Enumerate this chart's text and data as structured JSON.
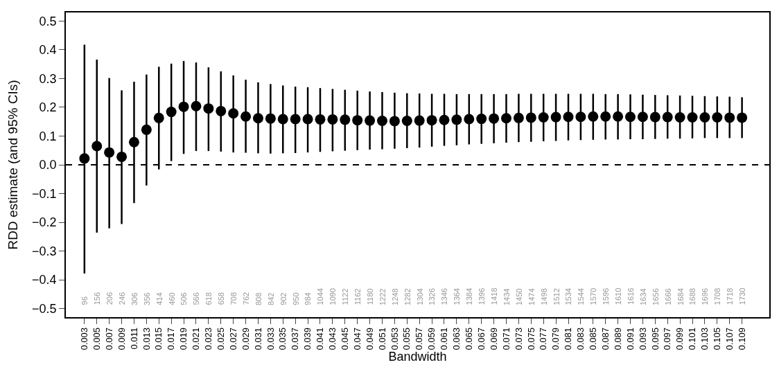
{
  "chart_data": {
    "type": "scatter",
    "xlabel": "Bandwidth",
    "ylabel": "RDD estimate (and 95% CIs)",
    "categories": [
      "0.003",
      "0.005",
      "0.007",
      "0.009",
      "0.011",
      "0.013",
      "0.015",
      "0.017",
      "0.019",
      "0.021",
      "0.023",
      "0.025",
      "0.027",
      "0.029",
      "0.031",
      "0.033",
      "0.035",
      "0.037",
      "0.039",
      "0.041",
      "0.043",
      "0.045",
      "0.047",
      "0.049",
      "0.051",
      "0.053",
      "0.055",
      "0.057",
      "0.059",
      "0.061",
      "0.063",
      "0.065",
      "0.067",
      "0.069",
      "0.071",
      "0.073",
      "0.075",
      "0.077",
      "0.079",
      "0.081",
      "0.083",
      "0.085",
      "0.087",
      "0.089",
      "0.091",
      "0.093",
      "0.095",
      "0.097",
      "0.099",
      "0.101",
      "0.103",
      "0.105",
      "0.107",
      "0.109"
    ],
    "series": [
      {
        "color": "#000000",
        "values": [
          0.022,
          0.065,
          0.043,
          0.028,
          0.079,
          0.122,
          0.163,
          0.184,
          0.202,
          0.204,
          0.196,
          0.187,
          0.179,
          0.168,
          0.162,
          0.161,
          0.159,
          0.159,
          0.159,
          0.158,
          0.158,
          0.157,
          0.155,
          0.154,
          0.153,
          0.152,
          0.153,
          0.154,
          0.155,
          0.156,
          0.157,
          0.159,
          0.16,
          0.161,
          0.162,
          0.163,
          0.164,
          0.165,
          0.166,
          0.167,
          0.167,
          0.168,
          0.168,
          0.168,
          0.167,
          0.167,
          0.166,
          0.166,
          0.165,
          0.165,
          0.165,
          0.165,
          0.164,
          0.164
        ],
        "errors": [
          [
            -0.378,
            0.418
          ],
          [
            -0.236,
            0.366
          ],
          [
            -0.221,
            0.302
          ],
          [
            -0.206,
            0.259
          ],
          [
            -0.133,
            0.289
          ],
          [
            -0.072,
            0.314
          ],
          [
            -0.016,
            0.341
          ],
          [
            0.013,
            0.352
          ],
          [
            0.038,
            0.361
          ],
          [
            0.048,
            0.356
          ],
          [
            0.048,
            0.339
          ],
          [
            0.046,
            0.325
          ],
          [
            0.043,
            0.311
          ],
          [
            0.042,
            0.296
          ],
          [
            0.04,
            0.287
          ],
          [
            0.039,
            0.281
          ],
          [
            0.04,
            0.276
          ],
          [
            0.041,
            0.272
          ],
          [
            0.043,
            0.27
          ],
          [
            0.045,
            0.267
          ],
          [
            0.047,
            0.264
          ],
          [
            0.049,
            0.261
          ],
          [
            0.051,
            0.258
          ],
          [
            0.053,
            0.255
          ],
          [
            0.054,
            0.253
          ],
          [
            0.056,
            0.251
          ],
          [
            0.058,
            0.249
          ],
          [
            0.06,
            0.248
          ],
          [
            0.063,
            0.247
          ],
          [
            0.066,
            0.247
          ],
          [
            0.068,
            0.246
          ],
          [
            0.071,
            0.246
          ],
          [
            0.073,
            0.246
          ],
          [
            0.075,
            0.246
          ],
          [
            0.077,
            0.246
          ],
          [
            0.079,
            0.247
          ],
          [
            0.08,
            0.247
          ],
          [
            0.082,
            0.247
          ],
          [
            0.083,
            0.247
          ],
          [
            0.085,
            0.247
          ],
          [
            0.086,
            0.247
          ],
          [
            0.087,
            0.247
          ],
          [
            0.088,
            0.246
          ],
          [
            0.088,
            0.246
          ],
          [
            0.089,
            0.245
          ],
          [
            0.089,
            0.244
          ],
          [
            0.09,
            0.243
          ],
          [
            0.091,
            0.242
          ],
          [
            0.091,
            0.241
          ],
          [
            0.092,
            0.24
          ],
          [
            0.093,
            0.239
          ],
          [
            0.093,
            0.238
          ],
          [
            0.093,
            0.237
          ],
          [
            0.093,
            0.235
          ]
        ]
      }
    ],
    "ylim": [
      -0.53,
      0.53
    ],
    "yticks": [
      {
        "value": -0.5,
        "label": "−0.5"
      },
      {
        "value": -0.4,
        "label": "−0.4"
      },
      {
        "value": -0.3,
        "label": "−0.3"
      },
      {
        "value": -0.2,
        "label": "−0.2"
      },
      {
        "value": -0.1,
        "label": "−0.1"
      },
      {
        "value": 0,
        "label": "0.0"
      },
      {
        "value": 0.1,
        "label": "0.1"
      },
      {
        "value": 0.2,
        "label": "0.2"
      },
      {
        "value": 0.3,
        "label": "0.3"
      },
      {
        "value": 0.4,
        "label": "0.4"
      },
      {
        "value": 0.5,
        "label": "0.5"
      }
    ],
    "ref_lines": [
      {
        "axis": "y",
        "value": 0,
        "line_style": "dashed",
        "color": "#000000"
      }
    ],
    "marker": "circle",
    "annotations": [
      "96",
      "156",
      "206",
      "246",
      "306",
      "356",
      "414",
      "460",
      "506",
      "566",
      "618",
      "658",
      "708",
      "762",
      "808",
      "842",
      "902",
      "950",
      "984",
      "1044",
      "1090",
      "1122",
      "1162",
      "1180",
      "1222",
      "1248",
      "1282",
      "1304",
      "1326",
      "1346",
      "1364",
      "1384",
      "1396",
      "1418",
      "1434",
      "1450",
      "1474",
      "1498",
      "1512",
      "1534",
      "1544",
      "1570",
      "1596",
      "1610",
      "1616",
      "1634",
      "1656",
      "1666",
      "1684",
      "1688",
      "1696",
      "1708",
      "1718",
      "1730"
    ]
  }
}
